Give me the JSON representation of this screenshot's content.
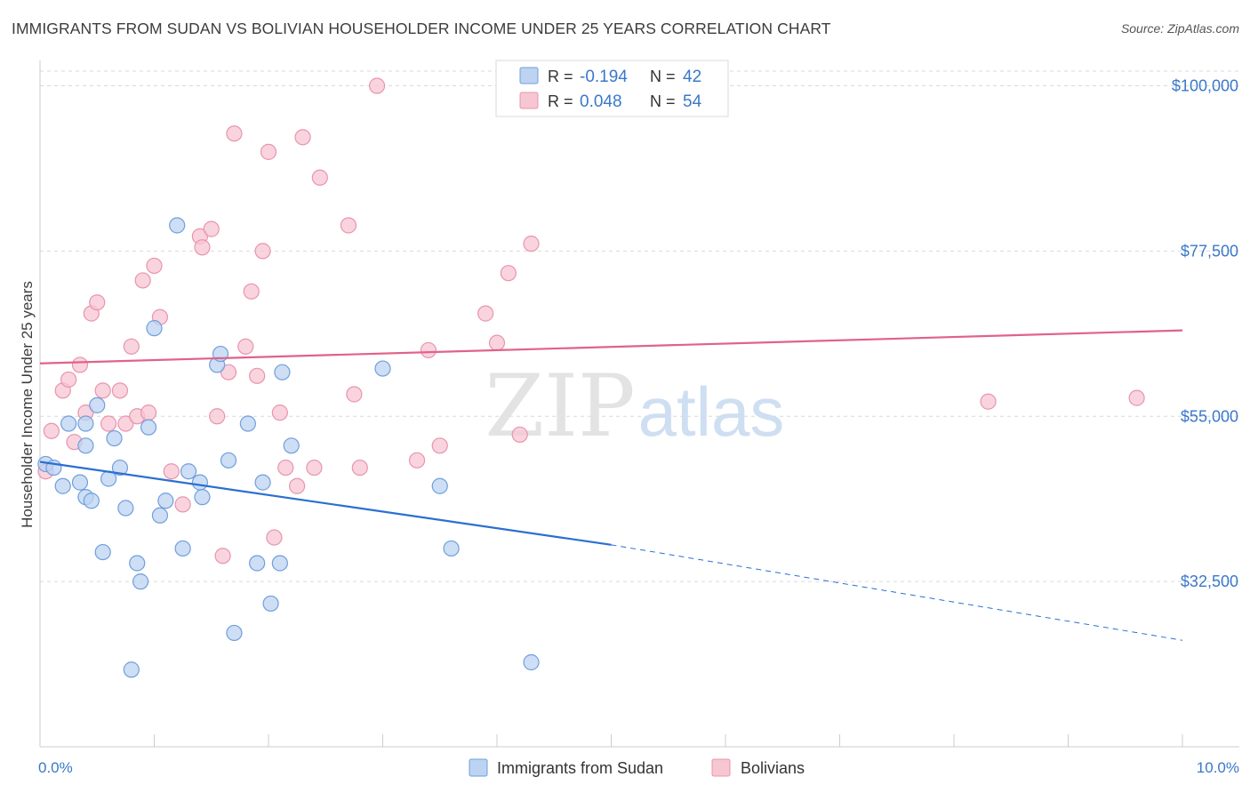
{
  "title": "IMMIGRANTS FROM SUDAN VS BOLIVIAN HOUSEHOLDER INCOME UNDER 25 YEARS CORRELATION CHART",
  "source": "Source: ZipAtlas.com",
  "watermark": {
    "zip": "ZIP",
    "atlas": "atlas"
  },
  "colors": {
    "sudan_fill": "#bcd3f2",
    "sudan_stroke": "#6f9fdc",
    "sudan_line": "#2a6fd1",
    "bolivia_fill": "#f7c6d3",
    "bolivia_stroke": "#e894ad",
    "bolivia_line": "#e0628a",
    "value_text": "#3a78c9",
    "grid": "#d9d9d9"
  },
  "legend": {
    "r_label": "R =",
    "n_label": "N =",
    "rows": [
      {
        "series": "sudan",
        "r": "-0.194",
        "n": "42"
      },
      {
        "series": "bolivia",
        "r": "0.048",
        "n": "54"
      }
    ]
  },
  "chart_data": {
    "type": "scatter",
    "ylabel": "Householder Income Under 25 years",
    "x_tick_labels": {
      "min": "0.0%",
      "max": "10.0%"
    },
    "y_tick_labels": [
      "$100,000",
      "$77,500",
      "$55,000",
      "$32,500"
    ],
    "y_ticks": [
      100000,
      77500,
      55000,
      32500
    ],
    "xlim": [
      0,
      10
    ],
    "ylim": [
      10000,
      102000
    ],
    "grid": "horizontal dashed",
    "legend_position": "bottom",
    "series": [
      {
        "name": "Immigrants from Sudan",
        "key": "sudan",
        "points": [
          [
            0.05,
            48500
          ],
          [
            0.2,
            45500
          ],
          [
            0.25,
            54000
          ],
          [
            0.35,
            46000
          ],
          [
            0.4,
            44000
          ],
          [
            0.4,
            54000
          ],
          [
            0.4,
            51000
          ],
          [
            0.45,
            43500
          ],
          [
            0.5,
            56500
          ],
          [
            0.55,
            36500
          ],
          [
            0.6,
            46500
          ],
          [
            0.65,
            52000
          ],
          [
            0.7,
            48000
          ],
          [
            0.75,
            42500
          ],
          [
            0.8,
            20500
          ],
          [
            0.85,
            35000
          ],
          [
            0.88,
            32500
          ],
          [
            0.95,
            53500
          ],
          [
            1.0,
            67000
          ],
          [
            1.05,
            41500
          ],
          [
            1.1,
            43500
          ],
          [
            1.2,
            81000
          ],
          [
            1.25,
            37000
          ],
          [
            1.3,
            47500
          ],
          [
            1.4,
            46000
          ],
          [
            1.42,
            44000
          ],
          [
            1.55,
            62000
          ],
          [
            1.58,
            63500
          ],
          [
            1.65,
            49000
          ],
          [
            1.7,
            25500
          ],
          [
            1.82,
            54000
          ],
          [
            1.9,
            35000
          ],
          [
            1.95,
            46000
          ],
          [
            2.02,
            29500
          ],
          [
            2.1,
            35000
          ],
          [
            2.12,
            61000
          ],
          [
            2.2,
            51000
          ],
          [
            3.0,
            61500
          ],
          [
            3.5,
            45500
          ],
          [
            3.6,
            37000
          ],
          [
            4.3,
            21500
          ],
          [
            0.12,
            48000
          ]
        ],
        "trend": {
          "x0": 0,
          "y0": 48800,
          "x1": 5.0,
          "y1": 37500,
          "dash_to_x": 10.0,
          "dash_to_y": 24500
        }
      },
      {
        "name": "Bolivians",
        "key": "bolivia",
        "points": [
          [
            0.05,
            47500
          ],
          [
            0.1,
            53000
          ],
          [
            0.2,
            58500
          ],
          [
            0.25,
            60000
          ],
          [
            0.3,
            51500
          ],
          [
            0.35,
            62000
          ],
          [
            0.4,
            55500
          ],
          [
            0.45,
            69000
          ],
          [
            0.5,
            70500
          ],
          [
            0.55,
            58500
          ],
          [
            0.6,
            54000
          ],
          [
            0.7,
            58500
          ],
          [
            0.75,
            54000
          ],
          [
            0.8,
            64500
          ],
          [
            0.85,
            55000
          ],
          [
            0.9,
            73500
          ],
          [
            0.95,
            55500
          ],
          [
            1.0,
            75500
          ],
          [
            1.05,
            68500
          ],
          [
            1.15,
            47500
          ],
          [
            1.25,
            43000
          ],
          [
            1.4,
            79500
          ],
          [
            1.42,
            78000
          ],
          [
            1.5,
            80500
          ],
          [
            1.55,
            55000
          ],
          [
            1.6,
            36000
          ],
          [
            1.65,
            61000
          ],
          [
            1.7,
            93500
          ],
          [
            1.8,
            64500
          ],
          [
            1.85,
            72000
          ],
          [
            1.9,
            60500
          ],
          [
            1.95,
            77500
          ],
          [
            2.0,
            91000
          ],
          [
            2.05,
            38500
          ],
          [
            2.1,
            55500
          ],
          [
            2.15,
            48000
          ],
          [
            2.25,
            45500
          ],
          [
            2.3,
            93000
          ],
          [
            2.4,
            48000
          ],
          [
            2.45,
            87500
          ],
          [
            2.7,
            81000
          ],
          [
            2.75,
            58000
          ],
          [
            2.8,
            48000
          ],
          [
            2.95,
            100000
          ],
          [
            3.3,
            49000
          ],
          [
            3.4,
            64000
          ],
          [
            3.5,
            51000
          ],
          [
            3.9,
            69000
          ],
          [
            4.0,
            65000
          ],
          [
            4.1,
            74500
          ],
          [
            4.2,
            52500
          ],
          [
            4.3,
            78500
          ],
          [
            8.3,
            57000
          ],
          [
            9.6,
            57500
          ]
        ],
        "trend": {
          "x0": 0,
          "y0": 62200,
          "x1": 10.0,
          "y1": 66700
        }
      }
    ]
  }
}
